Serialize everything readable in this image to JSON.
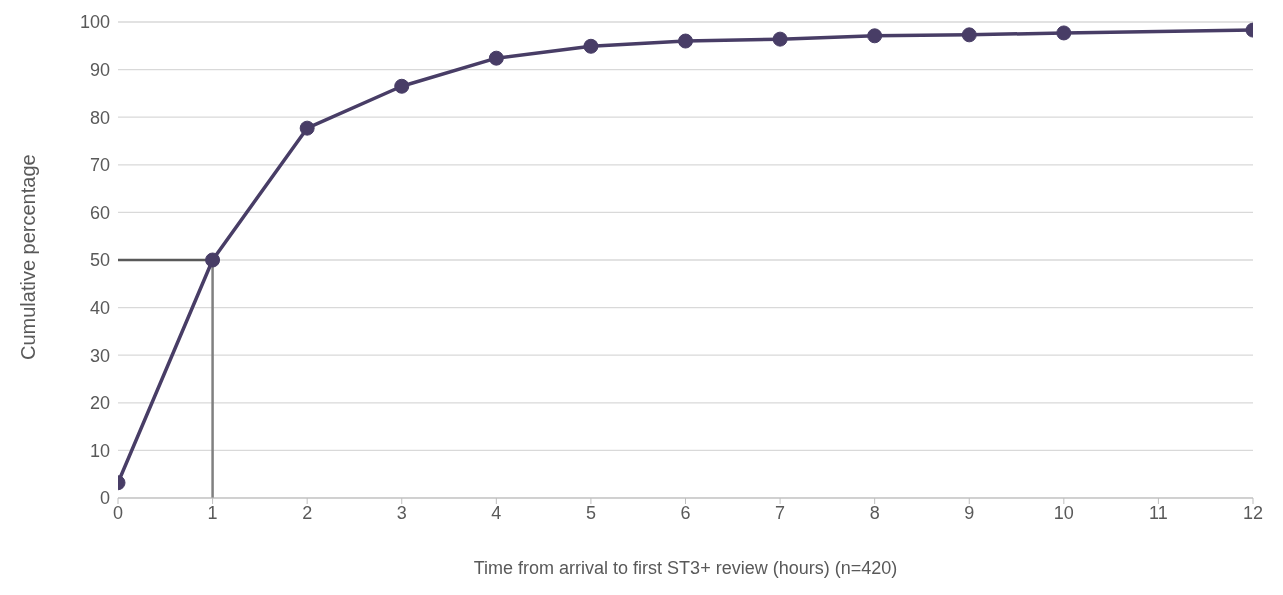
{
  "chart_data": {
    "type": "line",
    "xlabel": "Time from arrival to first ST3+ review (hours) (n=420)",
    "ylabel": "Cumulative percentage",
    "x": [
      0,
      1,
      2,
      3,
      4,
      5,
      6,
      7,
      8,
      9,
      10,
      12
    ],
    "series": [
      {
        "color": "#483d66",
        "values": [
          3.2,
          50,
          77.7,
          86.5,
          92.4,
          94.9,
          96.0,
          96.4,
          97.1,
          97.3,
          97.7,
          98.3
        ]
      }
    ],
    "xlim": [
      0,
      12
    ],
    "xticks": [
      0,
      1,
      2,
      3,
      4,
      5,
      6,
      7,
      8,
      9,
      10,
      11,
      12
    ],
    "ylim": [
      0,
      100
    ],
    "yticks": [
      0,
      10,
      20,
      30,
      40,
      50,
      60,
      70,
      80,
      90,
      100
    ],
    "ref_lines": [
      {
        "axis": "y",
        "value": 50,
        "color": "#595959"
      },
      {
        "axis": "x",
        "value": 1,
        "color": "#808080"
      }
    ],
    "grid": "y",
    "legend": false,
    "marker": "circle",
    "line_style": "solid"
  }
}
